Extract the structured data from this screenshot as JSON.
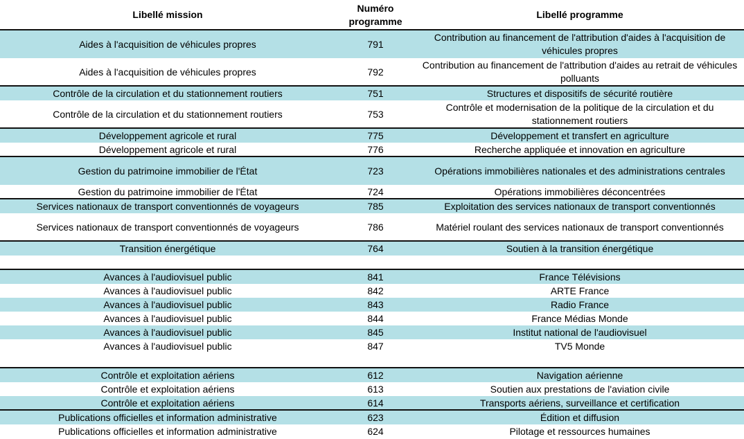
{
  "table": {
    "header": [
      "Libellé mission",
      "Numéro programme",
      "Libellé programme"
    ],
    "rows": [
      [
        "Aides à l'acquisition de véhicules propres",
        791,
        "Contribution au financement de l'attribution d'aides à l'acquisition de véhicules propres"
      ],
      [
        "Aides à l'acquisition de véhicules propres",
        792,
        "Contribution au financement de l'attribution d'aides au retrait de véhicules polluants"
      ],
      [
        "Contrôle de la circulation et du stationnement routiers",
        751,
        "Structures et dispositifs de sécurité routière"
      ],
      [
        "Contrôle de la circulation et du stationnement routiers",
        753,
        "Contrôle et modernisation de la politique de la circulation et du stationnement routiers"
      ],
      [
        "Développement agricole et rural",
        775,
        "Développement et transfert en agriculture"
      ],
      [
        "Développement agricole et rural",
        776,
        "Recherche appliquée et innovation en agriculture"
      ],
      [
        "Gestion du patrimoine immobilier de l'État",
        723,
        "Opérations immobilières nationales et des administrations centrales"
      ],
      [
        "Gestion du patrimoine immobilier de l'État",
        724,
        "Opérations immobilières déconcentrées"
      ],
      [
        "Services nationaux de transport conventionnés de voyageurs",
        785,
        "Exploitation des services nationaux de transport conventionnés"
      ],
      [
        "Services nationaux de transport conventionnés de voyageurs",
        786,
        "Matériel roulant des services nationaux de transport conventionnés"
      ],
      [
        "Transition énergétique",
        764,
        "Soutien à la transition énergétique"
      ],
      [
        "Avances à l'audiovisuel public",
        841,
        "France Télévisions"
      ],
      [
        "Avances à l'audiovisuel public",
        842,
        "ARTE France"
      ],
      [
        "Avances à l'audiovisuel public",
        843,
        "Radio France"
      ],
      [
        "Avances à l'audiovisuel public",
        844,
        "France Médias Monde"
      ],
      [
        "Avances à l'audiovisuel public",
        845,
        "Institut national de l'audiovisuel"
      ],
      [
        "Avances à l'audiovisuel public",
        847,
        "TV5 Monde"
      ],
      [
        "Contrôle et exploitation aériens",
        612,
        "Navigation aérienne"
      ],
      [
        "Contrôle et exploitation aériens",
        613,
        "Soutien aux prestations de l'aviation civile"
      ],
      [
        "Contrôle et exploitation aériens",
        614,
        "Transports aériens, surveillance et certification"
      ],
      [
        "Publications officielles et information administrative",
        623,
        "Édition et diffusion"
      ],
      [
        "Publications officielles et information administrative",
        624,
        "Pilotage et ressources humaines"
      ]
    ]
  }
}
